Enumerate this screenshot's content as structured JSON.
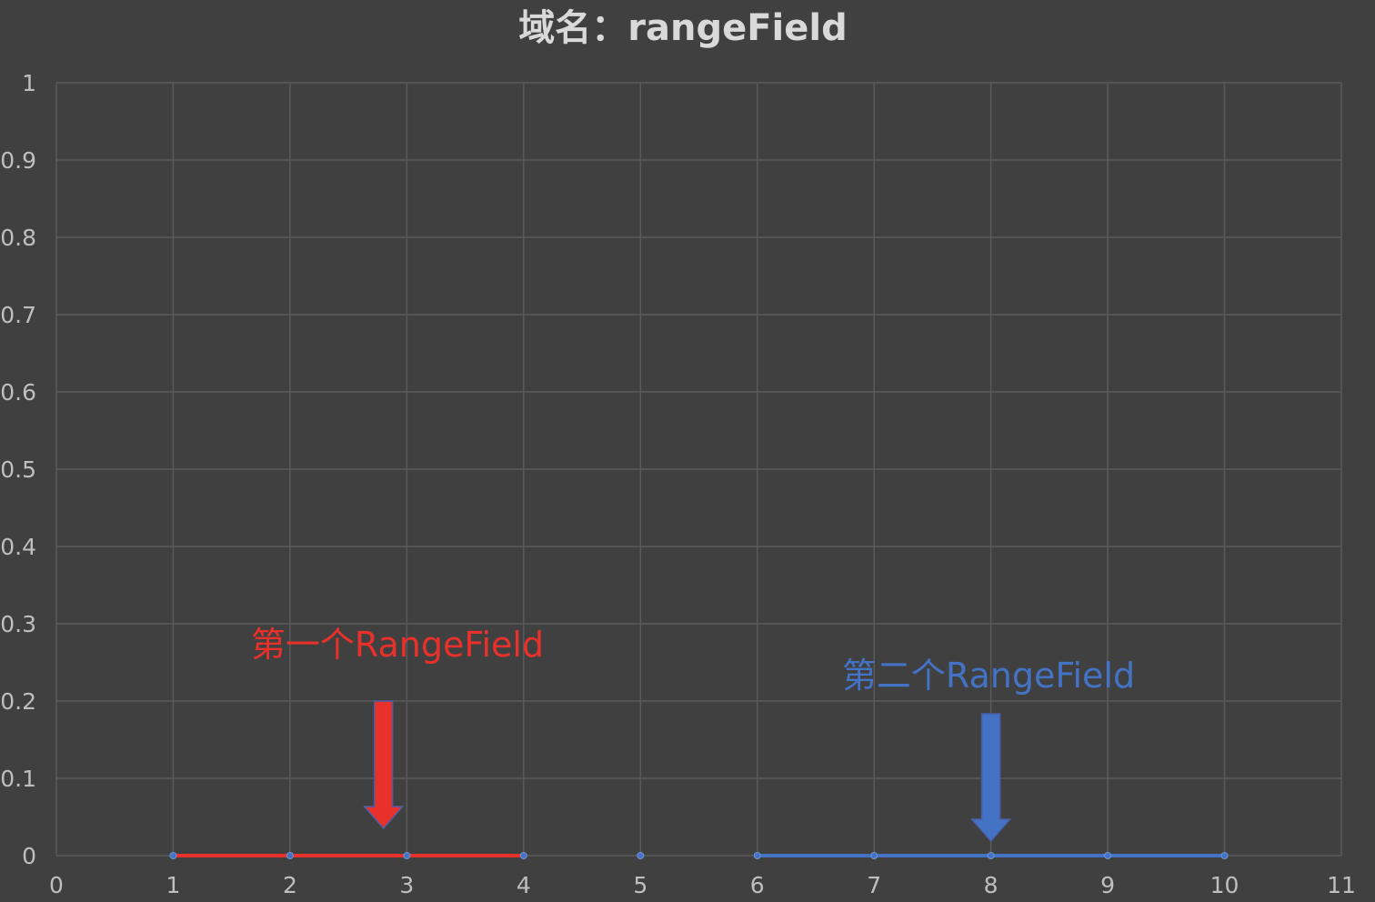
{
  "chart_data": {
    "type": "scatter",
    "title": "域名：rangeField",
    "xlim": [
      0,
      11
    ],
    "ylim": [
      0,
      1
    ],
    "x_ticks": [
      "0",
      "1",
      "2",
      "3",
      "4",
      "5",
      "6",
      "7",
      "8",
      "9",
      "10",
      "11"
    ],
    "y_ticks": [
      "0",
      "0.1",
      "0.2",
      "0.3",
      "0.4",
      "0.5",
      "0.6",
      "0.7",
      "0.8",
      "0.9",
      "1"
    ],
    "grid": true,
    "series": [
      {
        "id": "first",
        "color": "#E8312A",
        "connected": true,
        "points": [
          [
            1,
            0
          ],
          [
            2,
            0
          ],
          [
            3,
            0
          ],
          [
            4,
            0
          ]
        ]
      },
      {
        "id": "middle",
        "color": "#4472C4",
        "connected": false,
        "points": [
          [
            5,
            0
          ]
        ]
      },
      {
        "id": "second",
        "color": "#4472C4",
        "connected": true,
        "points": [
          [
            6,
            0
          ],
          [
            7,
            0
          ],
          [
            8,
            0
          ],
          [
            9,
            0
          ],
          [
            10,
            0
          ]
        ]
      }
    ],
    "annotations": [
      {
        "id": "first",
        "text": "第一个RangeField",
        "color": "#E8312A",
        "arrow_x": 2.8
      },
      {
        "id": "second",
        "text": "第二个RangeField",
        "color": "#4472C4",
        "arrow_x": 8
      }
    ]
  }
}
